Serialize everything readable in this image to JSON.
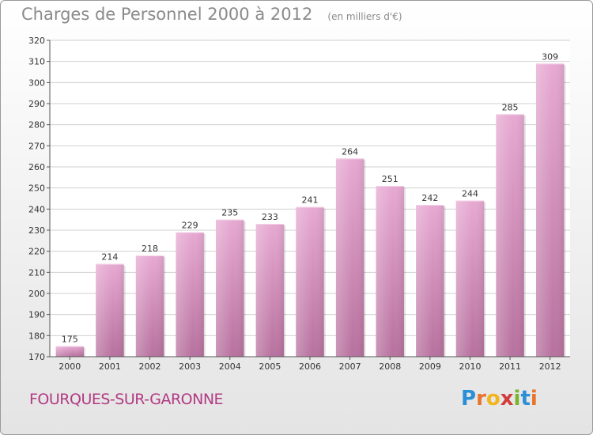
{
  "header": {
    "title": "Charges de Personnel 2000 à 2012",
    "subtitle": "(en milliers d'€)"
  },
  "footer": {
    "commune": "FOURQUES-SUR-GARONNE",
    "logo_letters": [
      "P",
      "r",
      "o",
      "x",
      "i",
      "t",
      "i"
    ],
    "logo_colors": [
      "#2a8fd6",
      "#e8732a",
      "#f2b51c",
      "#d23c3c",
      "#7ab32e",
      "#2a8fd6",
      "#e8732a"
    ]
  },
  "colors": {
    "bar_top": "#e7a9d2",
    "bar_bottom": "#b7719e",
    "axis": "#555555",
    "grid": "#d0d0d0"
  },
  "chart_data": {
    "type": "bar",
    "categories": [
      "2000",
      "2001",
      "2002",
      "2003",
      "2004",
      "2005",
      "2006",
      "2007",
      "2008",
      "2009",
      "2010",
      "2011",
      "2012"
    ],
    "values": [
      175,
      214,
      218,
      229,
      235,
      233,
      241,
      264,
      251,
      242,
      244,
      285,
      309
    ],
    "title": "Charges de Personnel 2000 à 2012",
    "ylim": [
      170,
      320
    ],
    "yticks": [
      170,
      180,
      190,
      200,
      210,
      220,
      230,
      240,
      250,
      260,
      270,
      280,
      290,
      300,
      310,
      320
    ],
    "grid": true,
    "data_labels": true
  }
}
